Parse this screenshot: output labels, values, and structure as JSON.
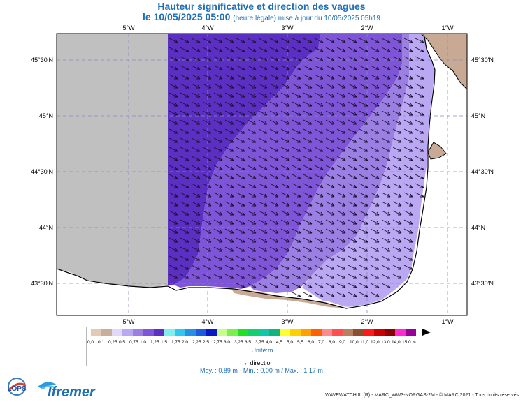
{
  "header": {
    "title": "Hauteur significative et direction des vagues",
    "date_time": "le 10/05/2025 05:00",
    "subtitle": "(heure légale) mise à jour du 10/05/2025 05h19"
  },
  "map": {
    "lon_labels": [
      "5°W",
      "4°W",
      "3°W",
      "2°W",
      "1°W"
    ],
    "lat_labels": [
      "45°30'N",
      "45°N",
      "44°30'N",
      "44°N",
      "43°30'N"
    ],
    "colors": {
      "no_data": "#c0c0c0",
      "land": "#c8aa94",
      "band_1_25": "#5b2fc1",
      "band_1_0": "#7d55d6",
      "band_0_75": "#9b7fe2",
      "band_0_5": "#bba8f3"
    },
    "arrow_icon": "wave-direction-arrow-icon"
  },
  "legend": {
    "ticks": [
      "0,0",
      "0,1",
      "0,25",
      "0,5",
      "0,75",
      "1,0",
      "1,25",
      "1,5",
      "1,75",
      "2,0",
      "2,25",
      "2,5",
      "2,75",
      "3,0",
      "3,25",
      "3,5",
      "3,75",
      "4,0",
      "4,5",
      "5,0",
      "5,5",
      "6,0",
      "7,0",
      "8,0",
      "9,0",
      "10,0",
      "11,0",
      "12,0",
      "13,0",
      "14,0",
      "15,0",
      "∞"
    ],
    "colors": [
      "#e2c9b8",
      "#c9ae9c",
      "#e2d8f8",
      "#bba8f3",
      "#9b7fe2",
      "#7d55d6",
      "#5b2fc1",
      "#7ff0f0",
      "#30c8f0",
      "#2590e8",
      "#1b5ce0",
      "#0a18c8",
      "#c8ff8a",
      "#78f050",
      "#22e022",
      "#12d06e",
      "#10c8a8",
      "#10b47e",
      "#ffff30",
      "#ffd000",
      "#ffa000",
      "#ff6000",
      "#ff8c8c",
      "#ff5050",
      "#b88060",
      "#8c5030",
      "#ff1a1a",
      "#cc0000",
      "#8c0000",
      "#ff2ad0",
      "#990099"
    ],
    "unit": "Unité:m",
    "direction_label": "direction",
    "stats": "Moy. : 0,89 m   -   Min. : 0,00 m / Max. : 1,17 m"
  },
  "footer": {
    "lops": "LOPS",
    "ifremer": "Ifremer",
    "credit": "WAVEWATCH III (R) - MARC_WW3-NORGAS-2M - © MARC 2021 - Tous droits réservés"
  }
}
